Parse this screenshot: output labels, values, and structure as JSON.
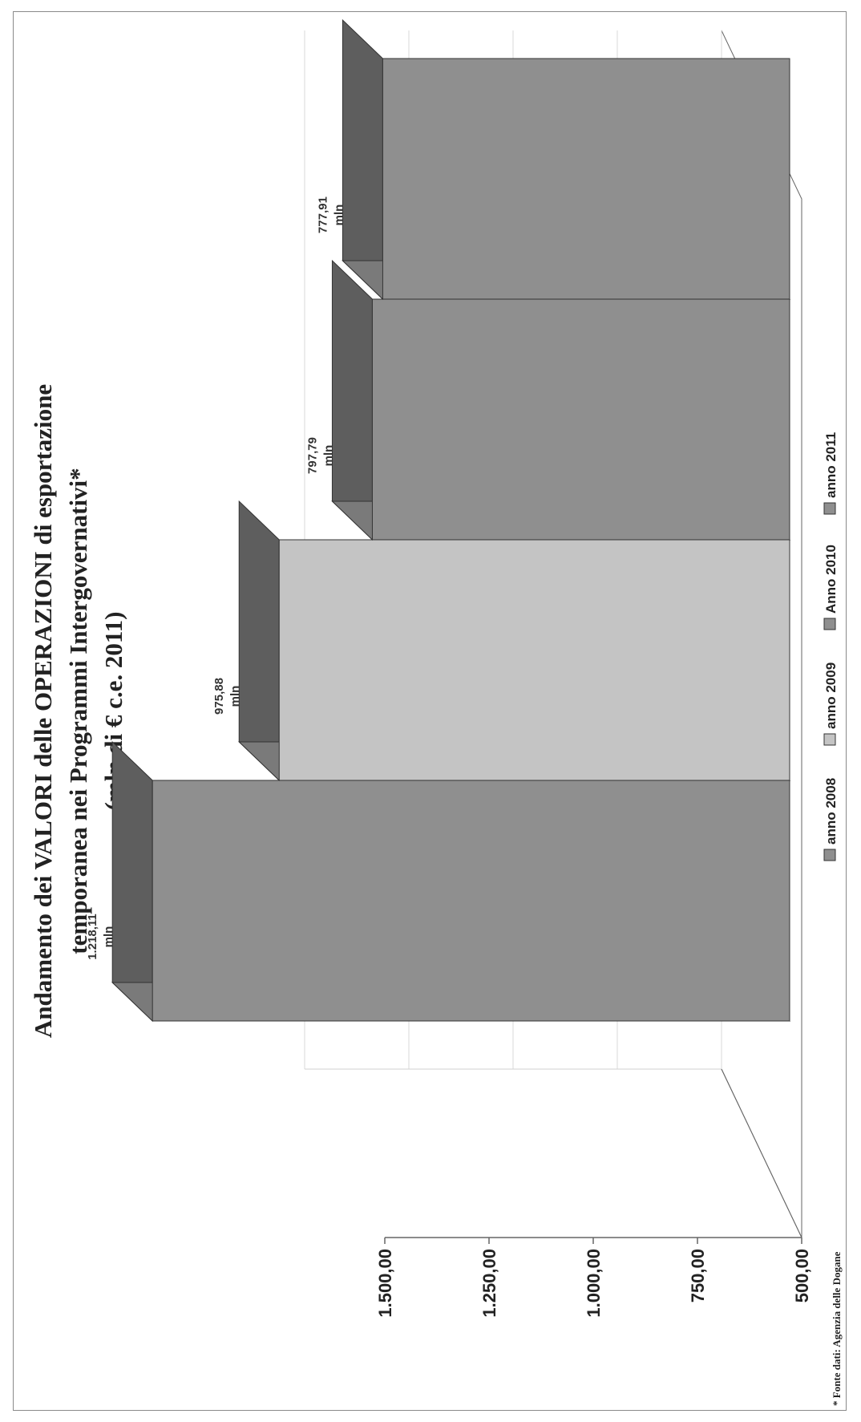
{
  "title_lines": [
    "Andamento dei VALORI delle OPERAZIONI di esportazione",
    "temporanea nei Programmi Intergovernativi*",
    "(mln di € c.e. 2011)"
  ],
  "source_note": "* Fonte dati: Agenzia delle Dogane",
  "colors": {
    "front_dark": "#8f8f8f",
    "front_light": "#c4c4c4",
    "side": "#7a7a7a",
    "top": "#5e5e5e",
    "floor": "#ffffff",
    "line": "#666666"
  },
  "chart_data": {
    "type": "bar",
    "three_d": true,
    "categories": [
      "anno 2008",
      "anno 2009",
      "Anno 2010",
      "anno  2011"
    ],
    "values": [
      1218.11,
      975.88,
      797.79,
      777.91
    ],
    "data_labels": [
      [
        "1.218,11",
        "mln"
      ],
      [
        "975,88",
        "mln"
      ],
      [
        "797,79",
        "mln"
      ],
      [
        "777,91",
        "mln"
      ]
    ],
    "series_colors": [
      "#8f8f8f",
      "#c4c4c4",
      "#8f8f8f",
      "#8f8f8f"
    ],
    "y_ticks": [
      500,
      750,
      1000,
      1250,
      1500
    ],
    "y_tick_labels": [
      "500,00",
      "750,00",
      "1.000,00",
      "1.250,00",
      "1.500,00"
    ],
    "ylim": [
      500,
      1500
    ],
    "grid": true,
    "legend_position": "bottom",
    "legend": [
      "anno 2008",
      "anno 2009",
      "Anno 2010",
      "anno  2011"
    ],
    "title": "Andamento dei VALORI delle OPERAZIONI di esportazione temporanea nei Programmi Intergovernativi* (mln di € c.e. 2011)"
  }
}
